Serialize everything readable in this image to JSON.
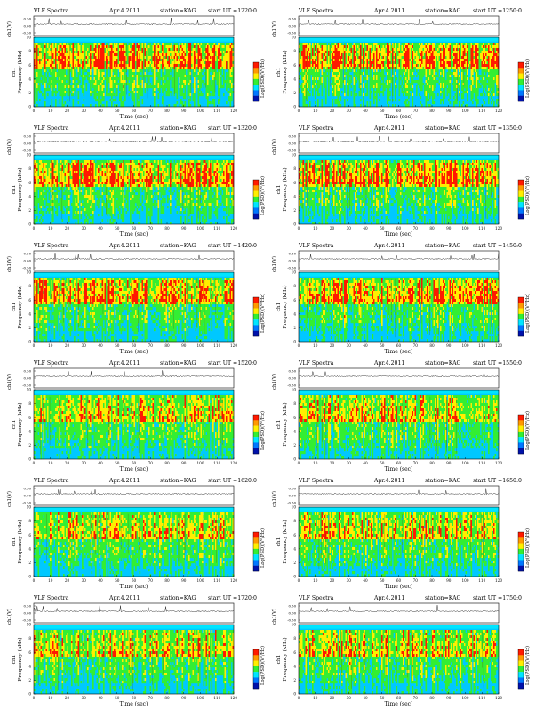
{
  "page": {
    "title": "VLF Spectra grid"
  },
  "colors": {
    "background": "#00e5ff",
    "low": "#00c8ff",
    "mid": "#33ee33",
    "high": "#ffee00",
    "peak": "#ff1a00",
    "line": "#000000"
  },
  "chart_data": [
    {
      "type": "heatmap",
      "title": "VLF Spectra",
      "date": "Apr.4.2011",
      "station": "station=KAG",
      "start": "start UT =1220:0",
      "top_ylabel": "ch1(V)",
      "top_yticks": [
        "0.50",
        "0.00",
        "-0.50"
      ],
      "ylabel": "Frequency (kHz)",
      "ylabel_prefix": "ch1",
      "xlabel": "Time (sec)",
      "xticks": [
        "0",
        "10",
        "20",
        "30",
        "40",
        "50",
        "60",
        "70",
        "80",
        "90",
        "100",
        "110",
        "120"
      ],
      "yticks": [
        "0",
        "2",
        "4",
        "6",
        "8",
        "10"
      ],
      "colorbar_label": "Log(PSD)(V²/Hz)",
      "xlim": [
        0,
        120
      ],
      "ylim": [
        0,
        10
      ]
    },
    {
      "type": "heatmap",
      "title": "VLF Spectra",
      "date": "Apr.4.2011",
      "station": "station=KAG",
      "start": "start UT =1250:0",
      "top_ylabel": "ch1(V)",
      "top_yticks": [
        "0.50",
        "0.00",
        "-0.50"
      ],
      "ylabel": "Frequency (kHz)",
      "ylabel_prefix": "ch1",
      "xlabel": "Time (sec)",
      "xticks": [
        "0",
        "10",
        "20",
        "30",
        "40",
        "50",
        "60",
        "70",
        "80",
        "90",
        "100",
        "110",
        "120"
      ],
      "yticks": [
        "0",
        "2",
        "4",
        "6",
        "8",
        "10"
      ],
      "colorbar_label": "Log(PSD)(V²/Hz)",
      "xlim": [
        0,
        120
      ],
      "ylim": [
        0,
        10
      ]
    },
    {
      "type": "heatmap",
      "title": "VLF Spectra",
      "date": "Apr.4.2011",
      "station": "station=KAG",
      "start": "start UT =1320:0",
      "top_ylabel": "ch1(V)",
      "top_yticks": [
        "0.50",
        "0.00",
        "-0.50"
      ],
      "ylabel": "Frequency (kHz)",
      "ylabel_prefix": "ch1",
      "xlabel": "Time (sec)",
      "xticks": [
        "0",
        "10",
        "20",
        "30",
        "40",
        "50",
        "60",
        "70",
        "80",
        "90",
        "100",
        "110",
        "120"
      ],
      "yticks": [
        "0",
        "2",
        "4",
        "6",
        "8",
        "10"
      ],
      "colorbar_label": "Log(PSD)(V²/Hz)",
      "xlim": [
        0,
        120
      ],
      "ylim": [
        0,
        10
      ]
    },
    {
      "type": "heatmap",
      "title": "VLF Spectra",
      "date": "Apr.4.2011",
      "station": "station=KAG",
      "start": "start UT =1350:0",
      "top_ylabel": "ch1(V)",
      "top_yticks": [
        "0.50",
        "0.00",
        "-0.50"
      ],
      "ylabel": "Frequency (kHz)",
      "ylabel_prefix": "ch1",
      "xlabel": "Time (sec)",
      "xticks": [
        "0",
        "10",
        "20",
        "30",
        "40",
        "50",
        "60",
        "70",
        "80",
        "90",
        "100",
        "110",
        "120"
      ],
      "yticks": [
        "0",
        "2",
        "4",
        "6",
        "8",
        "10"
      ],
      "colorbar_label": "Log(PSD)(V²/Hz)",
      "xlim": [
        0,
        120
      ],
      "ylim": [
        0,
        10
      ]
    },
    {
      "type": "heatmap",
      "title": "VLF Spectra",
      "date": "Apr.4.2011",
      "station": "station=KAG",
      "start": "start UT =1420:0",
      "top_ylabel": "ch1(V)",
      "top_yticks": [
        "0.50",
        "0.00",
        "-0.50"
      ],
      "ylabel": "Frequency (kHz)",
      "ylabel_prefix": "ch1",
      "xlabel": "Time (sec)",
      "xticks": [
        "0",
        "10",
        "20",
        "30",
        "40",
        "50",
        "60",
        "70",
        "80",
        "90",
        "100",
        "110",
        "120"
      ],
      "yticks": [
        "0",
        "2",
        "4",
        "6",
        "8",
        "10"
      ],
      "colorbar_label": "Log(PSD)(V²/Hz)",
      "xlim": [
        0,
        120
      ],
      "ylim": [
        0,
        10
      ]
    },
    {
      "type": "heatmap",
      "title": "VLF Spectra",
      "date": "Apr.4.2011",
      "station": "station=KAG",
      "start": "start UT =1450:0",
      "top_ylabel": "ch1(V)",
      "top_yticks": [
        "0.50",
        "0.00",
        "-0.50"
      ],
      "ylabel": "Frequency (kHz)",
      "ylabel_prefix": "ch1",
      "xlabel": "Time (sec)",
      "xticks": [
        "0",
        "10",
        "20",
        "30",
        "40",
        "50",
        "60",
        "70",
        "80",
        "90",
        "100",
        "110",
        "120"
      ],
      "yticks": [
        "0",
        "2",
        "4",
        "6",
        "8",
        "10"
      ],
      "colorbar_label": "Log(PSD)(V²/Hz)",
      "xlim": [
        0,
        120
      ],
      "ylim": [
        0,
        10
      ]
    },
    {
      "type": "heatmap",
      "title": "VLF Spectra",
      "date": "Apr.4.2011",
      "station": "station=KAG",
      "start": "start UT =1520:0",
      "top_ylabel": "ch1(V)",
      "top_yticks": [
        "0.50",
        "0.00",
        "-0.50"
      ],
      "ylabel": "Frequency (kHz)",
      "ylabel_prefix": "ch1",
      "xlabel": "Time (sec)",
      "xticks": [
        "0",
        "10",
        "20",
        "30",
        "40",
        "50",
        "60",
        "70",
        "80",
        "90",
        "100",
        "110",
        "120"
      ],
      "yticks": [
        "0",
        "2",
        "4",
        "6",
        "8",
        "10"
      ],
      "colorbar_label": "Log(PSD)(V²/Hz)",
      "xlim": [
        0,
        120
      ],
      "ylim": [
        0,
        10
      ]
    },
    {
      "type": "heatmap",
      "title": "VLF Spectra",
      "date": "Apr.4.2011",
      "station": "station=KAG",
      "start": "start UT =1550:0",
      "top_ylabel": "ch1(V)",
      "top_yticks": [
        "0.50",
        "0.00",
        "-0.50"
      ],
      "ylabel": "Frequency (kHz)",
      "ylabel_prefix": "ch1",
      "xlabel": "Time (sec)",
      "xticks": [
        "0",
        "10",
        "20",
        "30",
        "40",
        "50",
        "60",
        "70",
        "80",
        "90",
        "100",
        "110",
        "120"
      ],
      "yticks": [
        "0",
        "2",
        "4",
        "6",
        "8",
        "10"
      ],
      "colorbar_label": "Log(PSD)(V²/Hz)",
      "xlim": [
        0,
        120
      ],
      "ylim": [
        0,
        10
      ]
    },
    {
      "type": "heatmap",
      "title": "VLF Spectra",
      "date": "Apr.4.2011",
      "station": "station=KAG",
      "start": "start UT =1620:0",
      "top_ylabel": "ch1(V)",
      "top_yticks": [
        "0.50",
        "0.00",
        "-0.50"
      ],
      "ylabel": "Frequency (kHz)",
      "ylabel_prefix": "ch1",
      "xlabel": "Time (sec)",
      "xticks": [
        "0",
        "10",
        "20",
        "30",
        "40",
        "50",
        "60",
        "70",
        "80",
        "90",
        "100",
        "110",
        "120"
      ],
      "yticks": [
        "0",
        "2",
        "4",
        "6",
        "8",
        "10"
      ],
      "colorbar_label": "Log(PSD)(V²/Hz)",
      "xlim": [
        0,
        120
      ],
      "ylim": [
        0,
        10
      ]
    },
    {
      "type": "heatmap",
      "title": "VLF Spectra",
      "date": "Apr.4.2011",
      "station": "station=KAG",
      "start": "start UT =1650:0",
      "top_ylabel": "ch1(V)",
      "top_yticks": [
        "0.50",
        "0.00",
        "-0.50"
      ],
      "ylabel": "Frequency (kHz)",
      "ylabel_prefix": "ch1",
      "xlabel": "Time (sec)",
      "xticks": [
        "0",
        "10",
        "20",
        "30",
        "40",
        "50",
        "60",
        "70",
        "80",
        "90",
        "100",
        "110",
        "120"
      ],
      "yticks": [
        "0",
        "2",
        "4",
        "6",
        "8",
        "10"
      ],
      "colorbar_label": "Log(PSD)(V²/Hz)",
      "xlim": [
        0,
        120
      ],
      "ylim": [
        0,
        10
      ]
    },
    {
      "type": "heatmap",
      "title": "VLF Spectra",
      "date": "Apr.4.2011",
      "station": "station=KAG",
      "start": "start UT =1720:0",
      "top_ylabel": "ch1(V)",
      "top_yticks": [
        "0.50",
        "0.00",
        "-0.50"
      ],
      "ylabel": "Frequency (kHz)",
      "ylabel_prefix": "ch1",
      "xlabel": "Time (sec)",
      "xticks": [
        "0",
        "10",
        "20",
        "30",
        "40",
        "50",
        "60",
        "70",
        "80",
        "90",
        "100",
        "110",
        "120"
      ],
      "yticks": [
        "0",
        "2",
        "4",
        "6",
        "8",
        "10"
      ],
      "colorbar_label": "Log(PSD)(V²/Hz)",
      "xlim": [
        0,
        120
      ],
      "ylim": [
        0,
        10
      ]
    },
    {
      "type": "heatmap",
      "title": "VLF Spectra",
      "date": "Apr.4.2011",
      "station": "station=KAG",
      "start": "start UT =1750:0",
      "top_ylabel": "ch1(V)",
      "top_yticks": [
        "0.50",
        "0.00",
        "-0.50"
      ],
      "ylabel": "Frequency (kHz)",
      "ylabel_prefix": "ch1",
      "xlabel": "Time (sec)",
      "xticks": [
        "0",
        "10",
        "20",
        "30",
        "40",
        "50",
        "60",
        "70",
        "80",
        "90",
        "100",
        "110",
        "120"
      ],
      "yticks": [
        "0",
        "2",
        "4",
        "6",
        "8",
        "10"
      ],
      "colorbar_label": "Log(PSD)(V²/Hz)",
      "xlim": [
        0,
        120
      ],
      "ylim": [
        0,
        10
      ]
    }
  ]
}
